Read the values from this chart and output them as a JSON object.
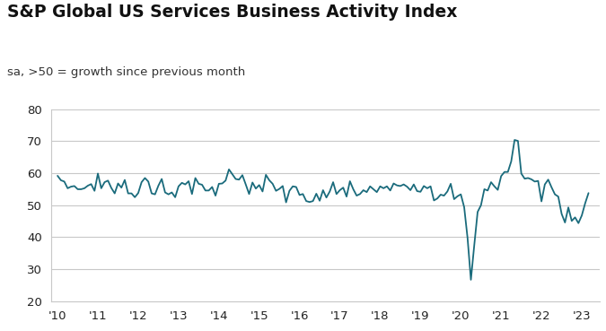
{
  "title": "S&P Global US Services Business Activity Index",
  "subtitle": "sa, >50 = growth since previous month",
  "line_color": "#1a6b7c",
  "background_color": "#ffffff",
  "grid_color": "#c8c8c8",
  "ylim": [
    20,
    80
  ],
  "yticks": [
    20,
    30,
    40,
    50,
    60,
    70,
    80
  ],
  "xtick_labels": [
    "'10",
    "'11",
    "'12",
    "'13",
    "'14",
    "'15",
    "'16",
    "'17",
    "'18",
    "'19",
    "'20",
    "'21",
    "'22",
    "'23"
  ],
  "values": [
    59.2,
    57.8,
    57.4,
    55.3,
    55.8,
    56.0,
    55.0,
    55.0,
    55.3,
    56.1,
    56.6,
    54.5,
    59.9,
    55.3,
    57.2,
    57.7,
    55.4,
    53.7,
    56.8,
    55.5,
    57.9,
    53.7,
    53.7,
    52.5,
    53.8,
    57.2,
    58.5,
    57.4,
    53.7,
    53.4,
    56.1,
    58.2,
    54.0,
    53.4,
    54.0,
    52.5,
    55.9,
    57.0,
    56.5,
    57.5,
    53.5,
    58.5,
    56.7,
    56.4,
    54.6,
    54.6,
    55.7,
    53.0,
    56.7,
    56.8,
    57.7,
    61.2,
    59.7,
    58.2,
    58.0,
    59.4,
    56.5,
    53.5,
    57.1,
    55.2,
    56.3,
    54.3,
    59.5,
    57.8,
    56.7,
    54.5,
    55.1,
    56.0,
    50.9,
    54.5,
    55.9,
    55.7,
    53.2,
    53.5,
    51.3,
    51.0,
    51.3,
    53.6,
    51.4,
    54.7,
    52.4,
    54.3,
    57.2,
    53.5,
    54.7,
    55.5,
    52.7,
    57.5,
    55.0,
    53.0,
    53.5,
    54.7,
    54.1,
    55.9,
    55.0,
    54.1,
    55.9,
    55.3,
    55.9,
    54.6,
    56.8,
    56.2,
    56.0,
    56.5,
    55.8,
    54.7,
    56.5,
    54.4,
    54.2,
    56.0,
    55.3,
    55.9,
    51.5,
    52.1,
    53.3,
    53.0,
    54.3,
    56.7,
    51.9,
    52.8,
    53.4,
    49.4,
    39.8,
    26.7,
    37.5,
    47.9,
    50.0,
    55.0,
    54.6,
    57.2,
    55.9,
    54.8,
    59.1,
    60.4,
    60.4,
    63.7,
    70.4,
    70.1,
    59.9,
    58.3,
    58.5,
    58.1,
    57.4,
    57.6,
    51.2,
    56.5,
    58.0,
    55.6,
    53.4,
    52.7,
    47.3,
    44.6,
    49.3,
    45.1,
    46.2,
    44.4,
    46.8,
    50.6,
    53.8
  ]
}
